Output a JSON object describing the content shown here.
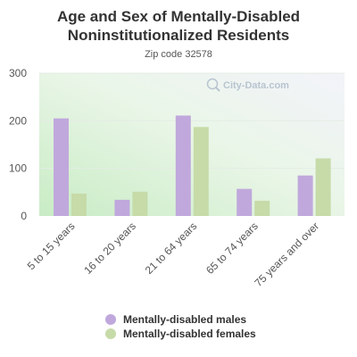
{
  "title": "Age and Sex of Mentally-Disabled Noninstitutionalized Residents",
  "subtitle": "Zip code 32578",
  "watermark": "City-Data.com",
  "colors": {
    "males": "#c0a8dc",
    "females": "#c6dba8",
    "axis_text": "#555555"
  },
  "chart_data": {
    "type": "bar",
    "title": "Age and Sex of Mentally-Disabled Noninstitutionalized Residents",
    "subtitle": "Zip code 32578",
    "xlabel": "",
    "ylabel": "",
    "categories": [
      "5 to 15 years",
      "16 to 20 years",
      "21 to 64 years",
      "65 to 74 years",
      "75 years and over"
    ],
    "series": [
      {
        "name": "Mentally-disabled males",
        "values": [
          205,
          34,
          211,
          57,
          85
        ]
      },
      {
        "name": "Mentally-disabled females",
        "values": [
          47,
          51,
          187,
          32,
          121
        ]
      }
    ],
    "ylim": [
      0,
      300
    ],
    "yticks": [
      "0",
      "100",
      "200",
      "300"
    ],
    "grid": true,
    "legend": "bottom"
  }
}
